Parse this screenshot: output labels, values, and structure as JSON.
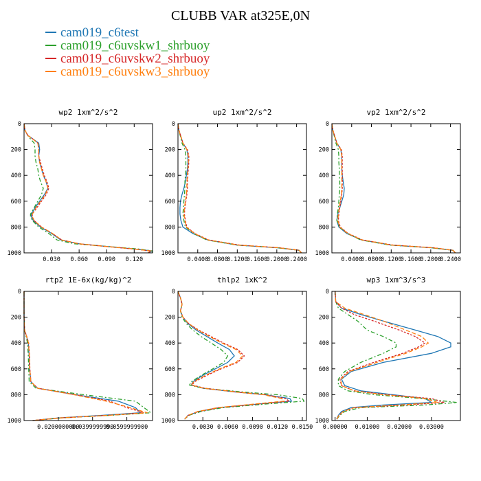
{
  "figure": {
    "title": "CLUBB VAR at325E,0N",
    "legend": [
      {
        "label": "cam019_c6test",
        "color": "#1f77b4"
      },
      {
        "label": "cam019_c6uvskw1_shrbuoy",
        "color": "#2ca02c"
      },
      {
        "label": "cam019_c6uvskw2_shrbuoy",
        "color": "#d62728"
      },
      {
        "label": "cam019_c6uvskw3_shrbuoy",
        "color": "#ff7f0e"
      }
    ]
  },
  "chart_data": [
    {
      "type": "line",
      "title": "wp2  1xm^2/s^2",
      "xlim": [
        0,
        0.14
      ],
      "ylim": [
        1000,
        0
      ],
      "y_ticks": [
        0,
        200,
        400,
        600,
        800,
        1000
      ],
      "x_ticks": [
        0.03,
        0.06,
        0.09,
        0.12
      ],
      "x_tick_labels": [
        "0.030",
        "0.060",
        "0.090",
        "0.120"
      ],
      "y": [
        0,
        50,
        90,
        110,
        150,
        200,
        250,
        300,
        350,
        400,
        450,
        500,
        550,
        600,
        650,
        700,
        720,
        750,
        800,
        850,
        900,
        930,
        950,
        970,
        985,
        1000
      ],
      "series": [
        {
          "color": "#1f77b4",
          "values": [
            0,
            0.001,
            0.004,
            0.008,
            0.016,
            0.017,
            0.016,
            0.017,
            0.019,
            0.021,
            0.024,
            0.026,
            0.022,
            0.017,
            0.012,
            0.008,
            0.008,
            0.01,
            0.018,
            0.03,
            0.04,
            0.06,
            0.09,
            0.12,
            0.14,
            0.135
          ]
        },
        {
          "color": "#2ca02c",
          "values": [
            0,
            0.001,
            0.004,
            0.006,
            0.011,
            0.012,
            0.012,
            0.013,
            0.015,
            0.016,
            0.018,
            0.021,
            0.019,
            0.015,
            0.011,
            0.007,
            0.007,
            0.009,
            0.016,
            0.027,
            0.036,
            0.055,
            0.09,
            0.125,
            0.14,
            0.14
          ]
        },
        {
          "color": "#d62728",
          "values": [
            0,
            0.001,
            0.004,
            0.008,
            0.015,
            0.016,
            0.016,
            0.018,
            0.02,
            0.022,
            0.025,
            0.027,
            0.024,
            0.019,
            0.014,
            0.009,
            0.009,
            0.011,
            0.019,
            0.031,
            0.041,
            0.06,
            0.088,
            0.12,
            0.138,
            0.135
          ]
        },
        {
          "color": "#ff7f0e",
          "values": [
            0,
            0.001,
            0.004,
            0.008,
            0.015,
            0.016,
            0.016,
            0.017,
            0.019,
            0.021,
            0.024,
            0.026,
            0.023,
            0.018,
            0.013,
            0.009,
            0.009,
            0.011,
            0.019,
            0.031,
            0.041,
            0.06,
            0.089,
            0.12,
            0.138,
            0.135
          ]
        }
      ]
    },
    {
      "type": "line",
      "title": "up2  1xm^2/s^2",
      "xlim": [
        0,
        0.26
      ],
      "ylim": [
        1000,
        0
      ],
      "y_ticks": [
        0,
        200,
        400,
        600,
        800,
        1000
      ],
      "x_ticks": [
        0.04,
        0.08,
        0.12,
        0.16,
        0.2,
        0.24
      ],
      "x_tick_labels": [
        "0.0400",
        "0.0800",
        "0.1200",
        "0.1600",
        "0.2000",
        "0.2400"
      ],
      "y": [
        0,
        50,
        100,
        150,
        200,
        250,
        300,
        350,
        400,
        450,
        500,
        550,
        600,
        650,
        700,
        750,
        800,
        850,
        900,
        940,
        960,
        980,
        1000
      ],
      "series": [
        {
          "color": "#1f77b4",
          "values": [
            0,
            0.002,
            0.006,
            0.01,
            0.018,
            0.02,
            0.02,
            0.019,
            0.017,
            0.015,
            0.012,
            0.008,
            0.005,
            0.004,
            0.004,
            0.006,
            0.01,
            0.03,
            0.06,
            0.12,
            0.2,
            0.245,
            0.25
          ]
        },
        {
          "color": "#2ca02c",
          "values": [
            0,
            0.002,
            0.005,
            0.008,
            0.014,
            0.016,
            0.016,
            0.016,
            0.015,
            0.014,
            0.014,
            0.013,
            0.012,
            0.011,
            0.01,
            0.012,
            0.015,
            0.032,
            0.058,
            0.12,
            0.2,
            0.245,
            0.25
          ]
        },
        {
          "color": "#d62728",
          "values": [
            0,
            0.002,
            0.006,
            0.01,
            0.019,
            0.022,
            0.022,
            0.021,
            0.02,
            0.019,
            0.019,
            0.018,
            0.016,
            0.014,
            0.013,
            0.015,
            0.018,
            0.034,
            0.062,
            0.125,
            0.205,
            0.245,
            0.25
          ]
        },
        {
          "color": "#ff7f0e",
          "values": [
            0,
            0.002,
            0.006,
            0.01,
            0.018,
            0.021,
            0.021,
            0.02,
            0.019,
            0.018,
            0.018,
            0.017,
            0.015,
            0.013,
            0.012,
            0.014,
            0.017,
            0.033,
            0.061,
            0.123,
            0.203,
            0.245,
            0.25
          ]
        }
      ]
    },
    {
      "type": "line",
      "title": "vp2  1xm^2/s^2",
      "xlim": [
        0,
        0.26
      ],
      "ylim": [
        1000,
        0
      ],
      "y_ticks": [
        0,
        200,
        400,
        600,
        800,
        1000
      ],
      "x_ticks": [
        0.04,
        0.08,
        0.12,
        0.16,
        0.2,
        0.24
      ],
      "x_tick_labels": [
        "0.0400",
        "0.0800",
        "0.1200",
        "0.1600",
        "0.2000",
        "0.2400"
      ],
      "y": [
        0,
        50,
        100,
        150,
        200,
        250,
        300,
        350,
        400,
        450,
        500,
        550,
        600,
        650,
        700,
        750,
        800,
        850,
        900,
        940,
        960,
        980,
        1000
      ],
      "series": [
        {
          "color": "#1f77b4",
          "values": [
            0,
            0.002,
            0.006,
            0.01,
            0.018,
            0.02,
            0.02,
            0.02,
            0.021,
            0.023,
            0.025,
            0.024,
            0.02,
            0.016,
            0.012,
            0.01,
            0.014,
            0.03,
            0.06,
            0.12,
            0.2,
            0.245,
            0.25
          ]
        },
        {
          "color": "#2ca02c",
          "values": [
            0,
            0.002,
            0.005,
            0.008,
            0.013,
            0.014,
            0.014,
            0.015,
            0.015,
            0.016,
            0.016,
            0.015,
            0.014,
            0.013,
            0.011,
            0.01,
            0.015,
            0.032,
            0.058,
            0.118,
            0.2,
            0.245,
            0.25
          ]
        },
        {
          "color": "#d62728",
          "values": [
            0,
            0.002,
            0.006,
            0.01,
            0.019,
            0.021,
            0.021,
            0.021,
            0.021,
            0.021,
            0.021,
            0.02,
            0.018,
            0.016,
            0.014,
            0.013,
            0.017,
            0.033,
            0.062,
            0.124,
            0.205,
            0.245,
            0.25
          ]
        },
        {
          "color": "#ff7f0e",
          "values": [
            0,
            0.002,
            0.006,
            0.01,
            0.018,
            0.02,
            0.02,
            0.02,
            0.02,
            0.02,
            0.02,
            0.019,
            0.017,
            0.015,
            0.013,
            0.012,
            0.016,
            0.032,
            0.061,
            0.122,
            0.203,
            0.245,
            0.25
          ]
        }
      ]
    },
    {
      "type": "line",
      "title": "rtp2  1E-6x(kg/kg)^2",
      "xlim": [
        0,
        0.075
      ],
      "ylim": [
        1000,
        0
      ],
      "y_ticks": [
        0,
        200,
        400,
        600,
        800,
        1000
      ],
      "x_ticks": [
        0.02,
        0.04,
        0.06
      ],
      "x_tick_labels": [
        "0.0200000000",
        "0.0399999990",
        "0.0599999900"
      ],
      "y": [
        0,
        100,
        200,
        300,
        350,
        400,
        500,
        600,
        700,
        750,
        800,
        850,
        900,
        940,
        960,
        980,
        1000
      ],
      "series": [
        {
          "color": "#1f77b4",
          "values": [
            0,
            0,
            0,
            0.0003,
            0.0015,
            0.0025,
            0.003,
            0.0032,
            0.004,
            0.008,
            0.03,
            0.055,
            0.065,
            0.068,
            0.045,
            0.02,
            0.005
          ]
        },
        {
          "color": "#2ca02c",
          "values": [
            0,
            0,
            0,
            0.0003,
            0.0012,
            0.002,
            0.0025,
            0.0027,
            0.003,
            0.007,
            0.035,
            0.065,
            0.07,
            0.074,
            0.05,
            0.022,
            0.005
          ]
        },
        {
          "color": "#d62728",
          "values": [
            0,
            0,
            0,
            0.0003,
            0.0016,
            0.0027,
            0.0032,
            0.0034,
            0.004,
            0.008,
            0.03,
            0.05,
            0.06,
            0.07,
            0.048,
            0.021,
            0.005
          ]
        },
        {
          "color": "#ff7f0e",
          "values": [
            0,
            0,
            0,
            0.0003,
            0.0015,
            0.0026,
            0.0031,
            0.0033,
            0.004,
            0.008,
            0.029,
            0.048,
            0.062,
            0.072,
            0.049,
            0.021,
            0.005
          ]
        }
      ]
    },
    {
      "type": "line",
      "title": "thlp2  1xK^2",
      "xlim": [
        0,
        0.0155
      ],
      "ylim": [
        1000,
        0
      ],
      "y_ticks": [
        0,
        200,
        400,
        600,
        800,
        1000
      ],
      "x_ticks": [
        0.003,
        0.006,
        0.009,
        0.012,
        0.015
      ],
      "x_tick_labels": [
        "0.0030",
        "0.0060",
        "0.0090",
        "0.0120",
        "0.0150"
      ],
      "y": [
        0,
        50,
        100,
        150,
        200,
        250,
        300,
        350,
        400,
        450,
        500,
        550,
        600,
        650,
        700,
        725,
        750,
        780,
        800,
        830,
        850,
        870,
        900,
        930,
        960,
        990
      ],
      "series": [
        {
          "color": "#1f77b4",
          "values": [
            0,
            0.0003,
            0.0005,
            0.0003,
            0.0006,
            0.0012,
            0.0022,
            0.0035,
            0.0048,
            0.0062,
            0.0068,
            0.006,
            0.0045,
            0.003,
            0.0018,
            0.0016,
            0.003,
            0.007,
            0.0105,
            0.0135,
            0.0137,
            0.01,
            0.005,
            0.0025,
            0.0012,
            0.0008
          ]
        },
        {
          "color": "#2ca02c",
          "values": [
            0,
            0.0003,
            0.0005,
            0.0003,
            0.0005,
            0.001,
            0.0018,
            0.0028,
            0.004,
            0.0052,
            0.006,
            0.0055,
            0.0042,
            0.0028,
            0.0016,
            0.0014,
            0.003,
            0.008,
            0.012,
            0.015,
            0.0152,
            0.011,
            0.0055,
            0.0028,
            0.0013,
            0.0008
          ]
        },
        {
          "color": "#d62728",
          "values": [
            0,
            0.0003,
            0.0005,
            0.0003,
            0.0006,
            0.0013,
            0.0025,
            0.004,
            0.0055,
            0.0072,
            0.008,
            0.0072,
            0.0052,
            0.0035,
            0.002,
            0.0017,
            0.0032,
            0.0072,
            0.0105,
            0.013,
            0.0134,
            0.01,
            0.005,
            0.0025,
            0.0012,
            0.0008
          ]
        },
        {
          "color": "#ff7f0e",
          "values": [
            0,
            0.0003,
            0.0005,
            0.0003,
            0.0006,
            0.0013,
            0.0024,
            0.0038,
            0.0053,
            0.007,
            0.0078,
            0.007,
            0.005,
            0.0033,
            0.0019,
            0.0016,
            0.0031,
            0.0071,
            0.0103,
            0.0125,
            0.0128,
            0.0095,
            0.0048,
            0.0024,
            0.0012,
            0.0008
          ]
        }
      ]
    },
    {
      "type": "line",
      "title": "wp3  1xm^3/s^3",
      "xlim": [
        -0.001,
        0.039
      ],
      "ylim": [
        1000,
        0
      ],
      "y_ticks": [
        0,
        200,
        400,
        600,
        800,
        1000
      ],
      "x_ticks": [
        0,
        0.01,
        0.02,
        0.03
      ],
      "x_tick_labels": [
        "0.00000",
        "0.01000",
        "0.02000",
        "0.03000"
      ],
      "y": [
        0,
        80,
        130,
        180,
        230,
        300,
        350,
        400,
        430,
        480,
        550,
        620,
        680,
        730,
        770,
        800,
        830,
        860,
        880,
        900,
        930,
        960,
        990
      ],
      "series": [
        {
          "color": "#1f77b4",
          "values": [
            0,
            0.0002,
            0.002,
            0.008,
            0.015,
            0.025,
            0.032,
            0.036,
            0.036,
            0.03,
            0.015,
            0.005,
            0.002,
            0.003,
            0.008,
            0.018,
            0.028,
            0.03,
            0.015,
            0.005,
            0.002,
            0.001,
            0.0005
          ]
        },
        {
          "color": "#2ca02c",
          "values": [
            0,
            0.0002,
            0.001,
            0.004,
            0.007,
            0.01,
            0.015,
            0.019,
            0.019,
            0.015,
            0.008,
            0.003,
            0.001,
            0.001,
            0.004,
            0.012,
            0.027,
            0.038,
            0.028,
            0.008,
            0.003,
            0.0015,
            0.0005
          ]
        },
        {
          "color": "#d62728",
          "values": [
            0,
            0.0002,
            0.002,
            0.006,
            0.012,
            0.02,
            0.025,
            0.028,
            0.026,
            0.021,
            0.012,
            0.004,
            0.0015,
            0.002,
            0.006,
            0.016,
            0.03,
            0.034,
            0.022,
            0.006,
            0.0025,
            0.0012,
            0.0005
          ]
        },
        {
          "color": "#ff7f0e",
          "values": [
            0,
            0.0002,
            0.003,
            0.009,
            0.015,
            0.022,
            0.027,
            0.029,
            0.027,
            0.022,
            0.013,
            0.0045,
            0.0018,
            0.002,
            0.006,
            0.015,
            0.028,
            0.032,
            0.02,
            0.006,
            0.0025,
            0.0012,
            0.0005
          ]
        }
      ]
    }
  ]
}
